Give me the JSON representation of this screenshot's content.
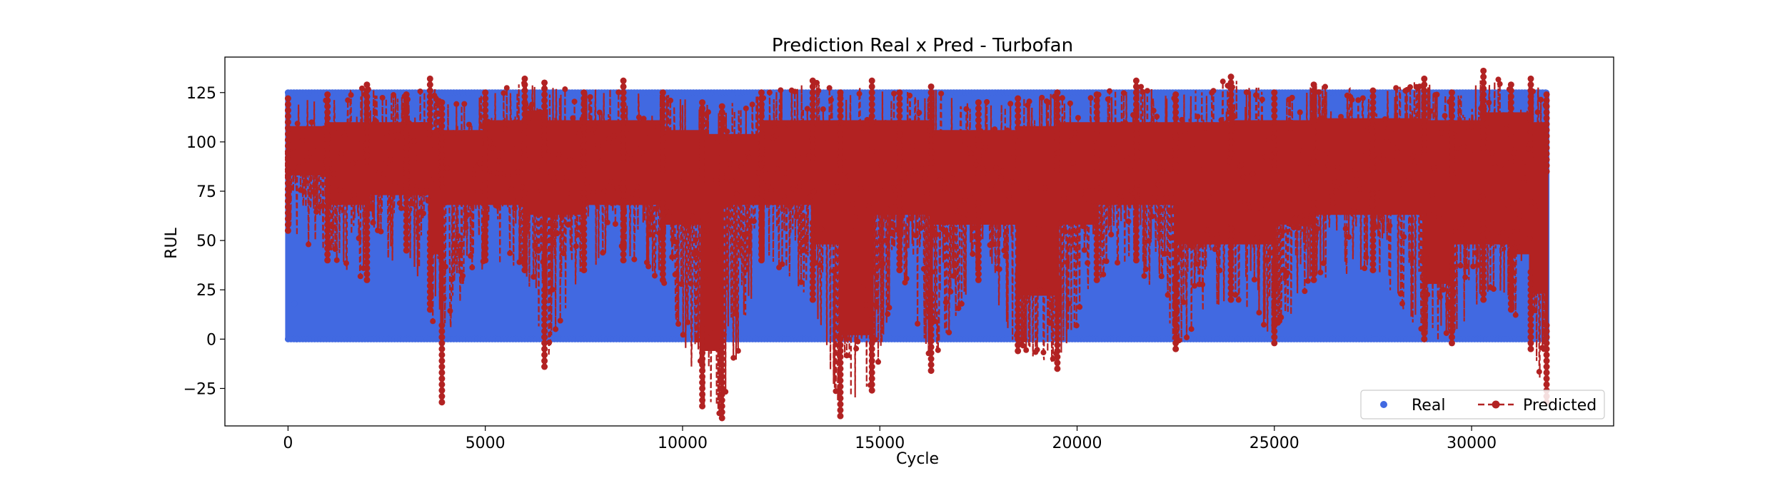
{
  "chart_data": {
    "type": "line",
    "title": "Prediction Real x Pred - Turbofan",
    "xlabel": "Cycle",
    "ylabel": "RUL",
    "xlim": [
      -1600,
      33600
    ],
    "ylim": [
      -44,
      143
    ],
    "x_ticks": [
      0,
      5000,
      10000,
      15000,
      20000,
      25000,
      30000
    ],
    "x_tick_labels": [
      "0",
      "5000",
      "10000",
      "15000",
      "20000",
      "25000",
      "30000"
    ],
    "y_ticks": [
      -25,
      0,
      25,
      50,
      75,
      100,
      125
    ],
    "y_tick_labels": [
      "−25",
      "0",
      "25",
      "50",
      "75",
      "100",
      "125"
    ],
    "grid": false,
    "legend_position": "lower-right",
    "legend_ncol": 2,
    "x_extent": [
      0,
      31900
    ],
    "series": [
      {
        "name": "Real",
        "style": "scatter",
        "color": "#4169e1",
        "y_range": [
          0,
          125
        ],
        "pattern": "sawtooth RUL per engine unit, clipped at 125, decreasing to 0"
      },
      {
        "name": "Predicted",
        "style": "dashed line with circle markers",
        "color": "#b22222",
        "band": [
          {
            "x": 0,
            "lo": 55,
            "hi": 122
          },
          {
            "x": 1000,
            "lo": 40,
            "hi": 124
          },
          {
            "x": 2000,
            "lo": 30,
            "hi": 129
          },
          {
            "x": 3000,
            "lo": 45,
            "hi": 124
          },
          {
            "x": 3600,
            "lo": 15,
            "hi": 132
          },
          {
            "x": 3900,
            "lo": -32,
            "hi": 120
          },
          {
            "x": 5000,
            "lo": 40,
            "hi": 125
          },
          {
            "x": 6000,
            "lo": 35,
            "hi": 132
          },
          {
            "x": 6500,
            "lo": -14,
            "hi": 130
          },
          {
            "x": 7500,
            "lo": 35,
            "hi": 125
          },
          {
            "x": 8500,
            "lo": 40,
            "hi": 131
          },
          {
            "x": 9500,
            "lo": 30,
            "hi": 125
          },
          {
            "x": 10500,
            "lo": -34,
            "hi": 120
          },
          {
            "x": 11000,
            "lo": -40,
            "hi": 118
          },
          {
            "x": 12000,
            "lo": 40,
            "hi": 125
          },
          {
            "x": 13300,
            "lo": 20,
            "hi": 131
          },
          {
            "x": 14000,
            "lo": -39,
            "hi": 125
          },
          {
            "x": 14800,
            "lo": -26,
            "hi": 131
          },
          {
            "x": 15500,
            "lo": 35,
            "hi": 125
          },
          {
            "x": 16300,
            "lo": -16,
            "hi": 128
          },
          {
            "x": 17500,
            "lo": 30,
            "hi": 120
          },
          {
            "x": 18500,
            "lo": -6,
            "hi": 122
          },
          {
            "x": 19500,
            "lo": -15,
            "hi": 125
          },
          {
            "x": 20500,
            "lo": 30,
            "hi": 124
          },
          {
            "x": 21500,
            "lo": 40,
            "hi": 131
          },
          {
            "x": 22500,
            "lo": -5,
            "hi": 124
          },
          {
            "x": 23900,
            "lo": 20,
            "hi": 133
          },
          {
            "x": 25000,
            "lo": -2,
            "hi": 125
          },
          {
            "x": 26000,
            "lo": 30,
            "hi": 129
          },
          {
            "x": 27500,
            "lo": 35,
            "hi": 126
          },
          {
            "x": 28800,
            "lo": 0,
            "hi": 132
          },
          {
            "x": 29500,
            "lo": -2,
            "hi": 125
          },
          {
            "x": 30300,
            "lo": 20,
            "hi": 136
          },
          {
            "x": 31000,
            "lo": 15,
            "hi": 129
          },
          {
            "x": 31500,
            "lo": -5,
            "hi": 132
          },
          {
            "x": 31900,
            "lo": -32,
            "hi": 124
          }
        ]
      }
    ]
  }
}
